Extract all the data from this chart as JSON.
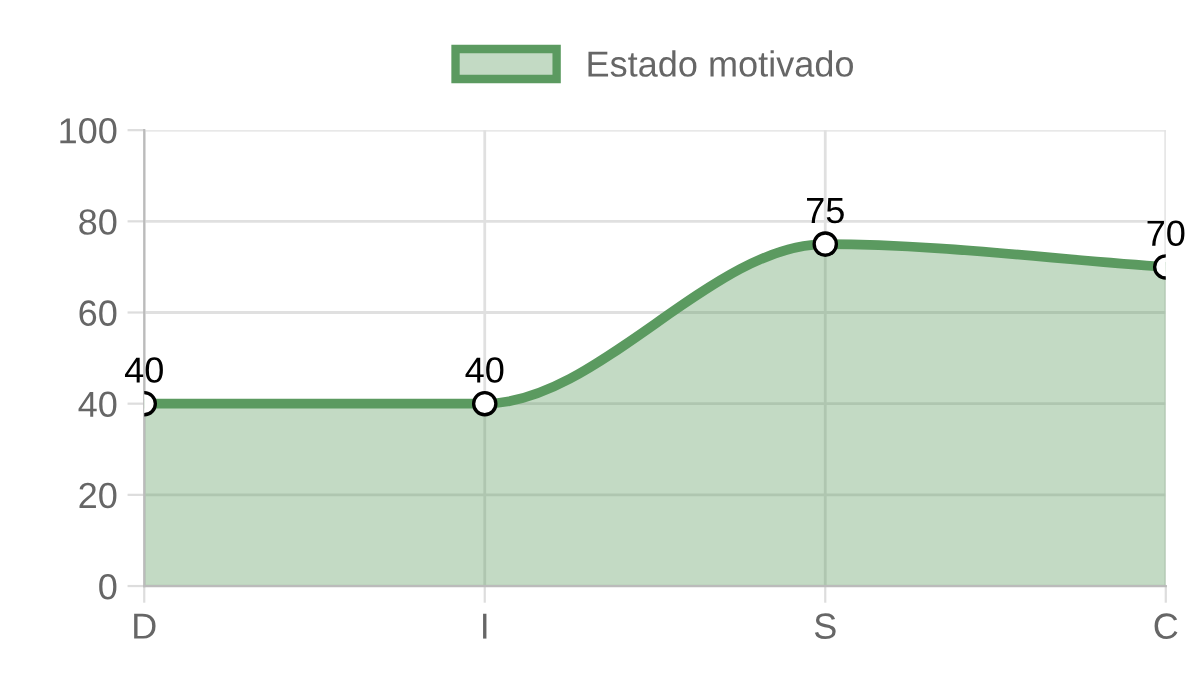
{
  "chart_data": {
    "type": "area",
    "categories": [
      "D",
      "I",
      "S",
      "C"
    ],
    "series": [
      {
        "name": "Estado motivado",
        "color": "#5b9a60",
        "values": [
          40,
          40,
          75,
          70
        ]
      }
    ],
    "ylim": [
      0,
      100
    ],
    "yticks": [
      0,
      20,
      40,
      60,
      80,
      100
    ],
    "grid": true,
    "legend": "top",
    "marker": "circle",
    "data_labels": true
  }
}
